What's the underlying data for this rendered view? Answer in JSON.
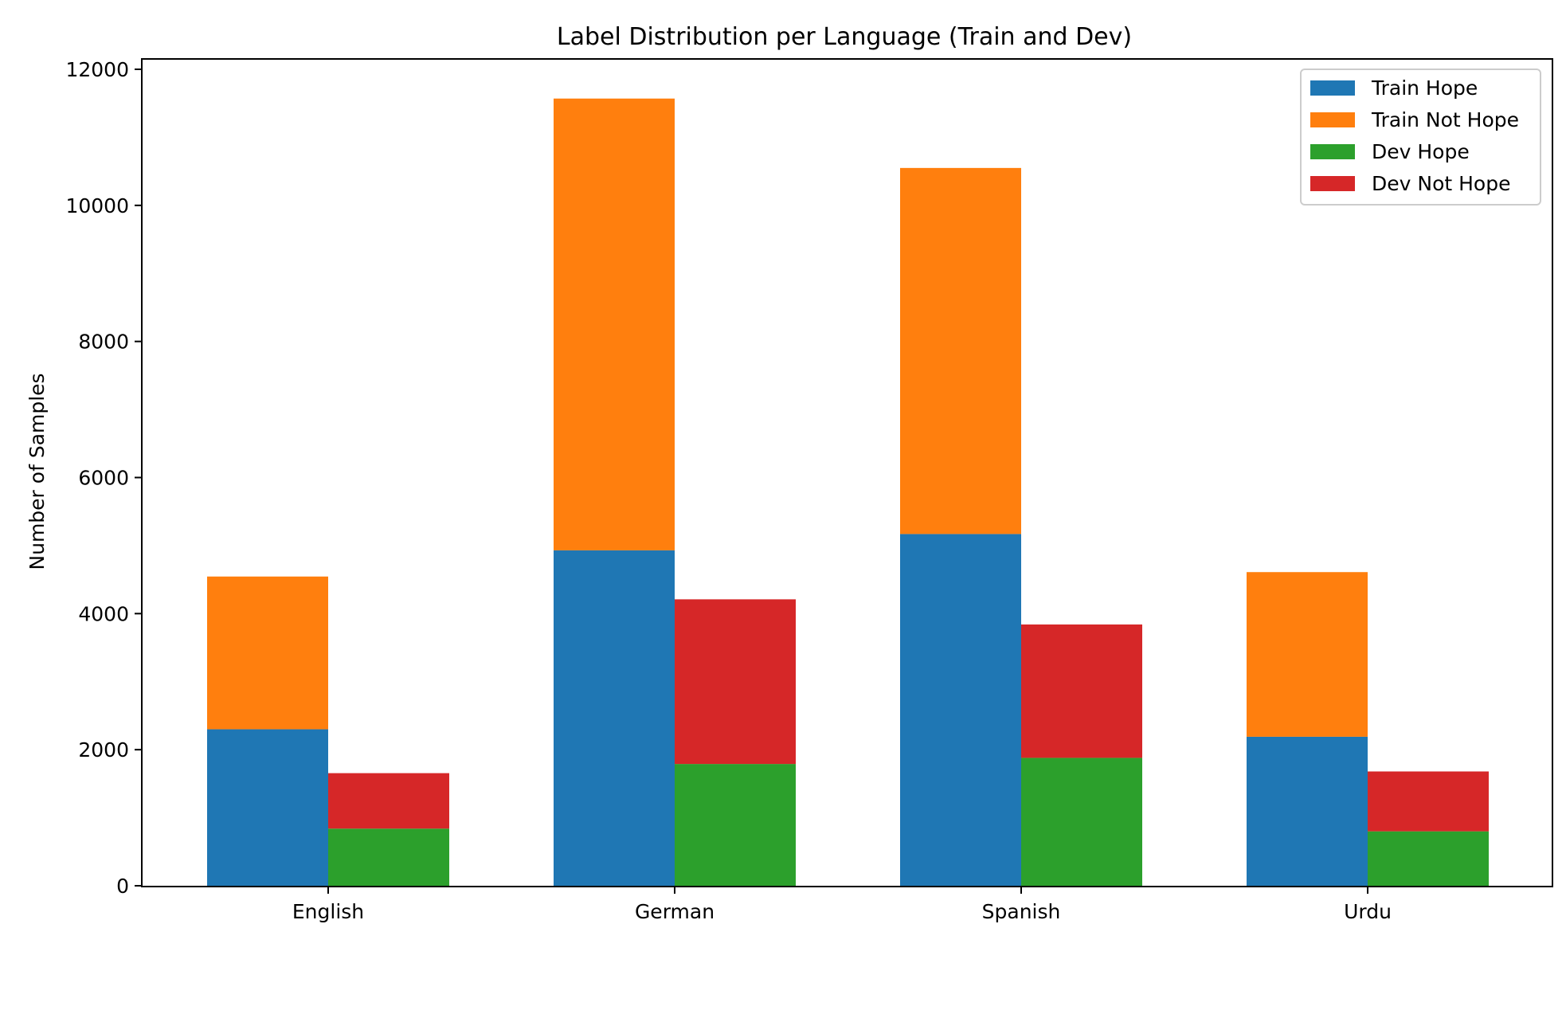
{
  "chart_data": {
    "type": "bar",
    "title": "Label Distribution per Language (Train and Dev)",
    "xlabel": "",
    "ylabel": "Number of Samples",
    "categories": [
      "English",
      "German",
      "Spanish",
      "Urdu"
    ],
    "ylim": [
      0,
      12000
    ],
    "yticks": [
      0,
      2000,
      4000,
      6000,
      8000,
      10000,
      12000
    ],
    "grid": false,
    "legend_position": "top-right",
    "groups": [
      {
        "name": "Train",
        "stack": [
          {
            "name": "Train Hope",
            "color": "#1f77b4",
            "values": [
              2300,
              4930,
              5170,
              2190
            ]
          },
          {
            "name": "Train Not Hope",
            "color": "#ff7f0e",
            "values": [
              2245,
              6640,
              5380,
              2420
            ]
          }
        ]
      },
      {
        "name": "Dev",
        "stack": [
          {
            "name": "Dev Hope",
            "color": "#2ca02c",
            "values": [
              840,
              1790,
              1880,
              800
            ]
          },
          {
            "name": "Dev Not Hope",
            "color": "#d62728",
            "values": [
              815,
              2420,
              1960,
              880
            ]
          }
        ]
      }
    ]
  }
}
